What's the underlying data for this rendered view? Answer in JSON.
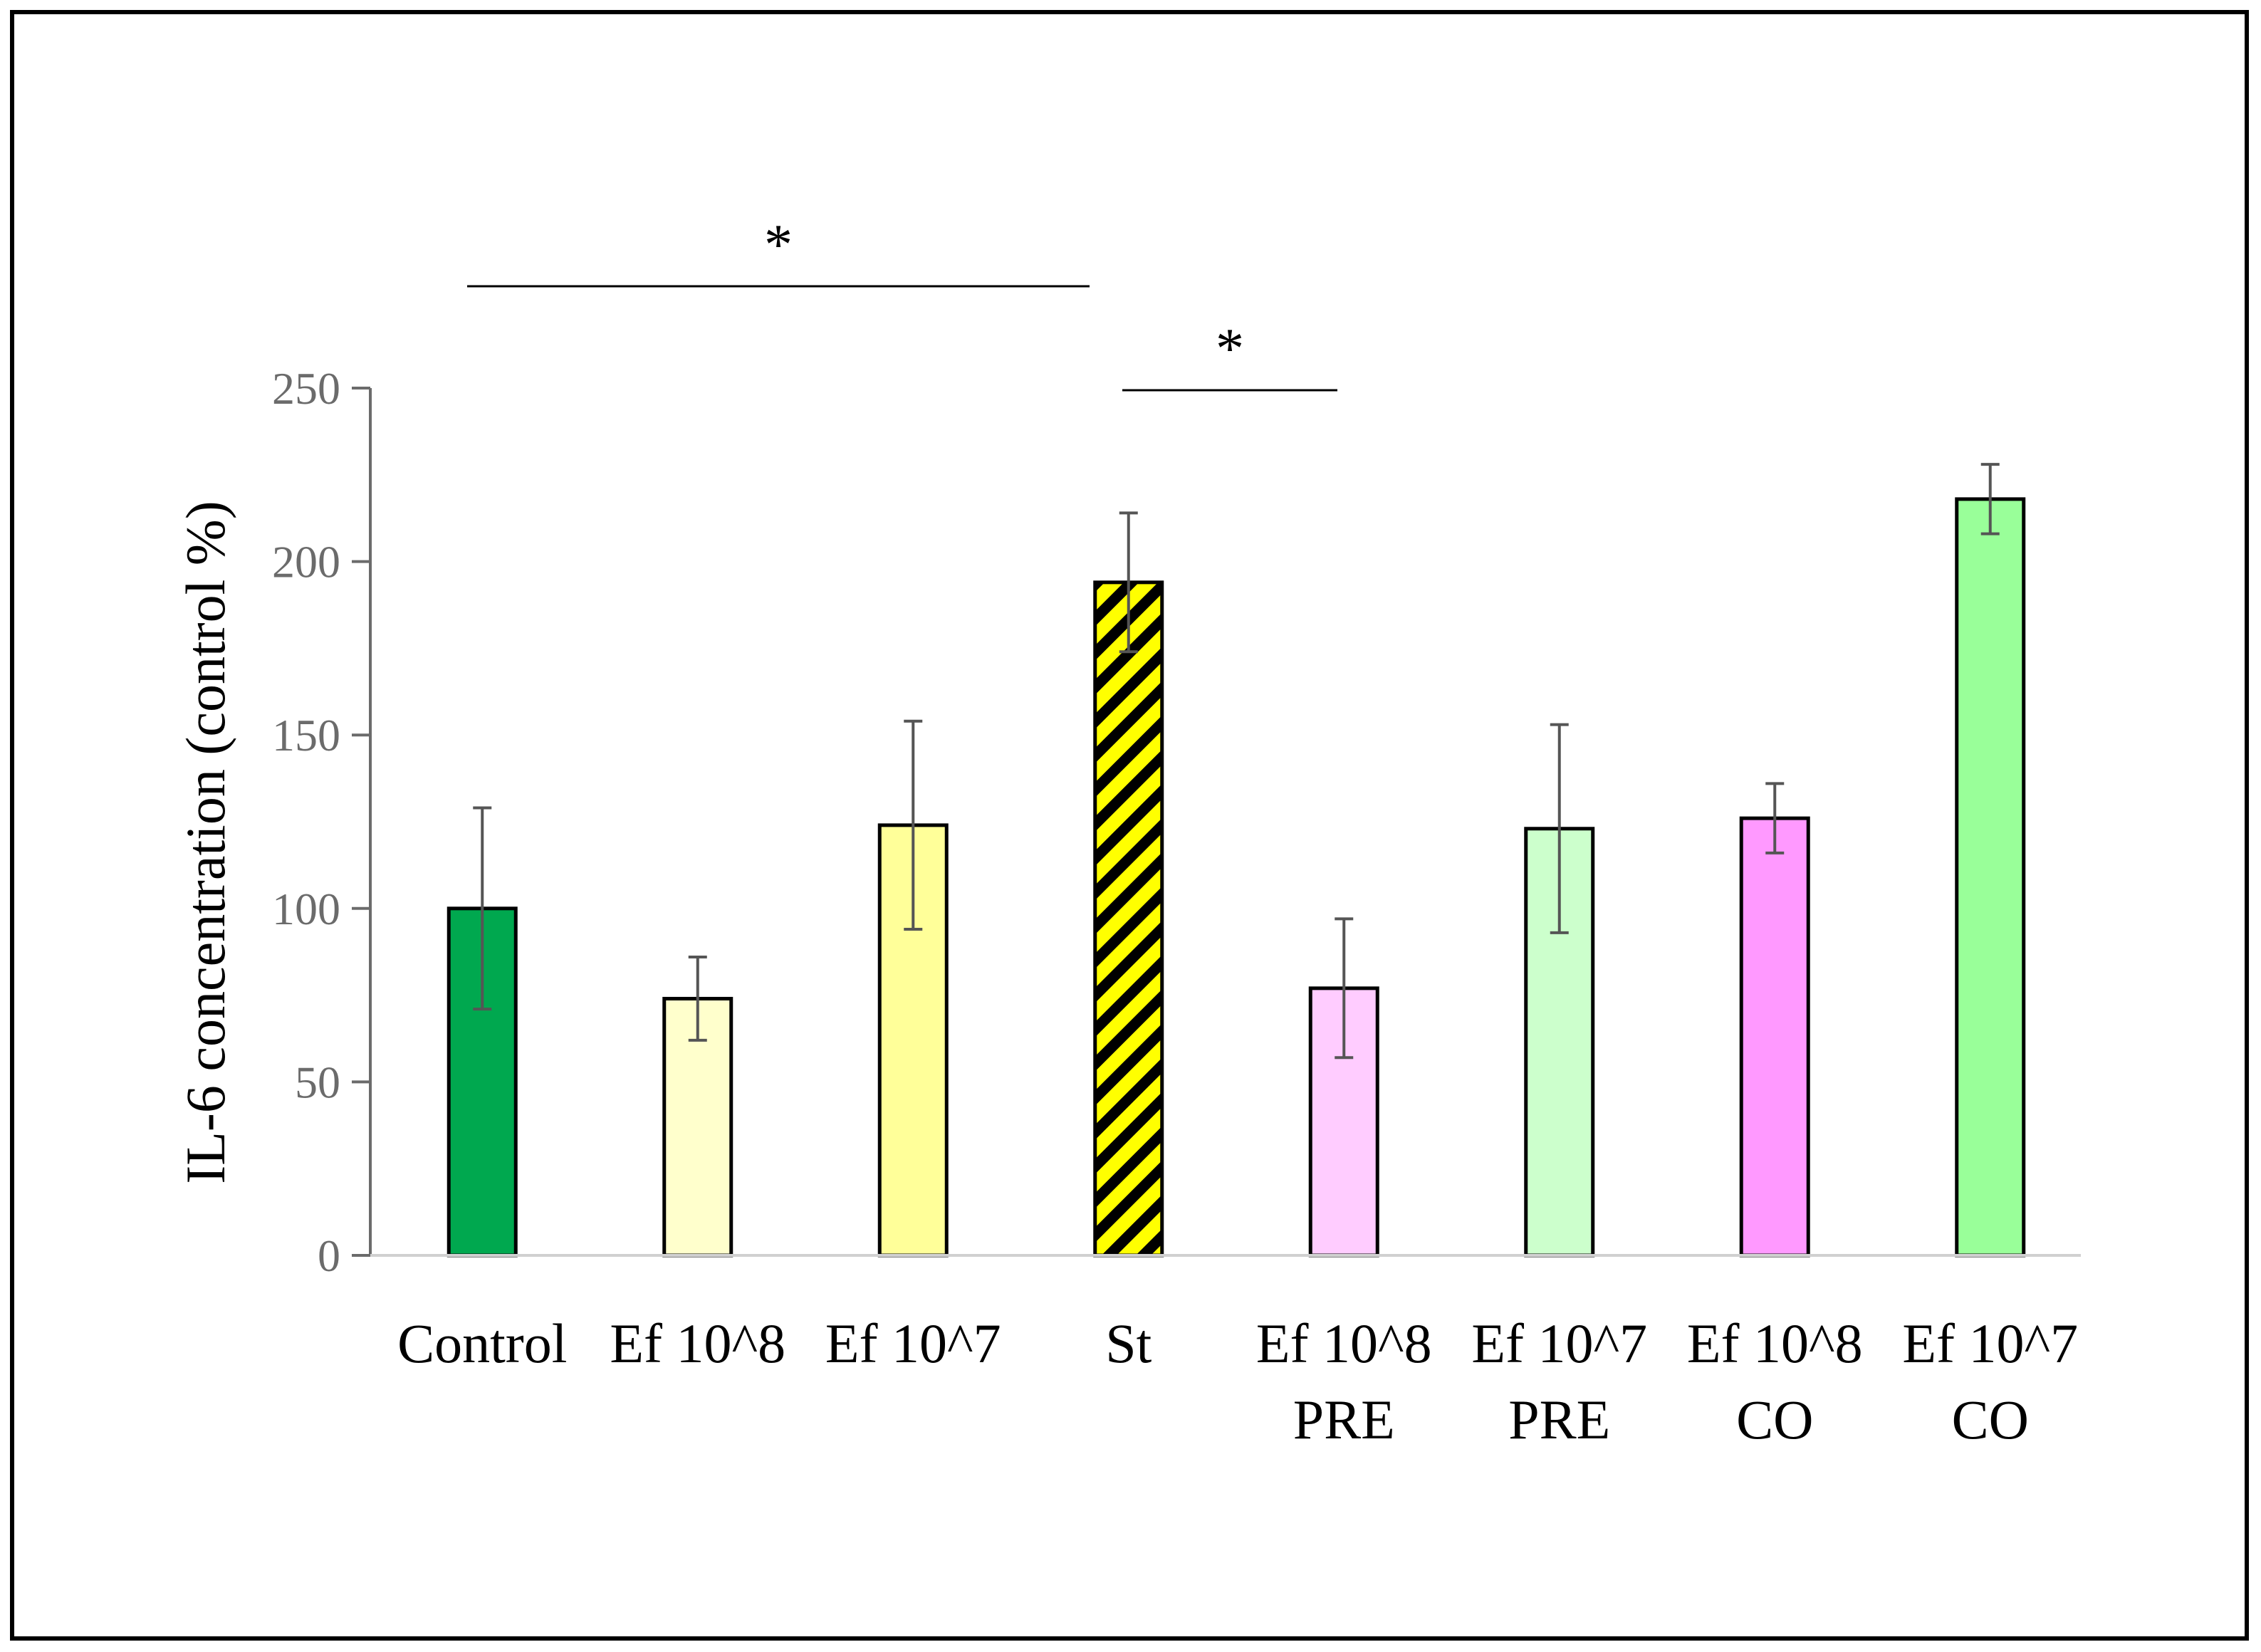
{
  "chart_data": {
    "type": "bar",
    "title": "",
    "xlabel": "",
    "ylabel": "IL-6 concentration (control %)",
    "ylim": [
      0,
      250
    ],
    "yticks": [
      0,
      50,
      100,
      150,
      200,
      250
    ],
    "grid": false,
    "categories": [
      {
        "lines": [
          "Control"
        ]
      },
      {
        "lines": [
          "Ef 10^8"
        ]
      },
      {
        "lines": [
          "Ef 10^7"
        ]
      },
      {
        "lines": [
          "St"
        ]
      },
      {
        "lines": [
          "Ef 10^8",
          "PRE"
        ]
      },
      {
        "lines": [
          "Ef 10^7",
          "PRE"
        ]
      },
      {
        "lines": [
          "Ef 10^8",
          "CO"
        ]
      },
      {
        "lines": [
          "Ef 10^7",
          "CO"
        ]
      }
    ],
    "values": [
      100,
      74,
      124,
      194,
      77,
      123,
      126,
      218
    ],
    "errors": [
      29,
      12,
      30,
      20,
      20,
      30,
      10,
      10
    ],
    "colors": [
      "#00a84f",
      "#ffffcc",
      "#ffff99",
      "#ffff00",
      "#ffccff",
      "#ccffcc",
      "#ff99ff",
      "#99ff99"
    ],
    "patterns": [
      "none",
      "none",
      "none",
      "hatch",
      "none",
      "none",
      "none",
      "none"
    ],
    "significance": [
      {
        "from": 0,
        "to": 3,
        "label": "*"
      },
      {
        "from": 3,
        "to": 4,
        "label": "*"
      }
    ]
  }
}
